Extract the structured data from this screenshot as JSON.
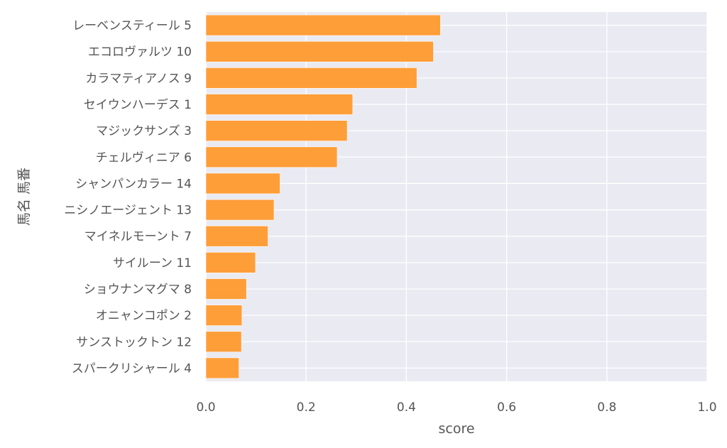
{
  "chart_data": {
    "type": "bar",
    "orientation": "horizontal",
    "categories": [
      "レーベンスティール 5",
      "エコロヴァルツ 10",
      "カラマティアノス 9",
      "セイウンハーデス 1",
      "マジックサンズ 3",
      "チェルヴィニア 6",
      "シャンパンカラー 14",
      "ニシノエージェント 13",
      "マイネルモーント 7",
      "サイルーン 11",
      "ショウナンマグマ 8",
      "オニャンコポン 2",
      "サンストックトン 12",
      "スパークリシャール 4"
    ],
    "values": [
      0.468,
      0.454,
      0.421,
      0.293,
      0.282,
      0.262,
      0.148,
      0.136,
      0.124,
      0.099,
      0.081,
      0.072,
      0.071,
      0.066
    ],
    "xlabel": "score",
    "ylabel": "馬名 馬番",
    "xlim": [
      0.0,
      1.0
    ],
    "xticks": [
      "0.0",
      "0.2",
      "0.4",
      "0.6",
      "0.8",
      "1.0"
    ],
    "grid": true,
    "colors": {
      "bar": "#ff9a2e",
      "plot_background": "#eaeaf2",
      "grid": "#ffffff",
      "text": "#555555"
    }
  }
}
